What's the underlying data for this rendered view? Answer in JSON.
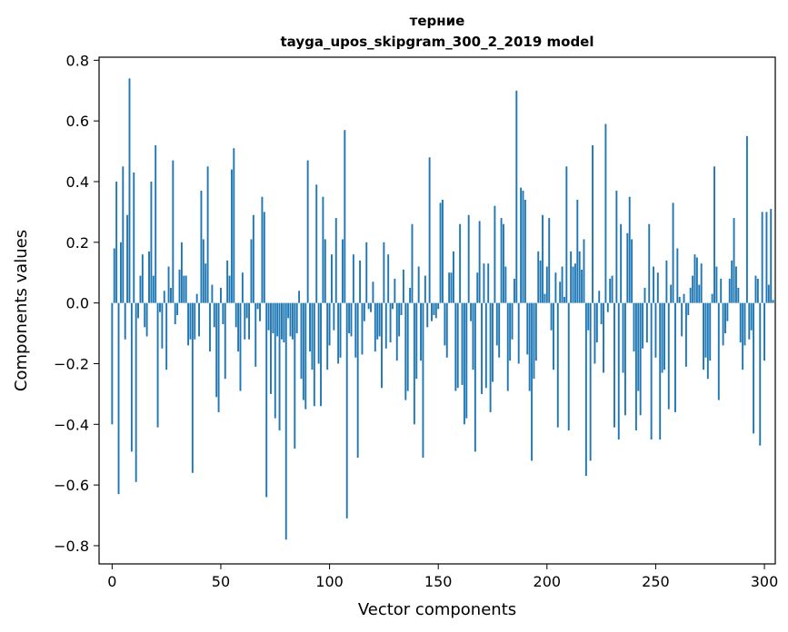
{
  "chart_data": {
    "type": "bar",
    "title": "терние",
    "subtitle": "tayga_upos_skipgram_300_2_2019 model",
    "xlabel": "Vector components",
    "ylabel": "Components values",
    "xlim": [
      -6,
      305
    ],
    "ylim": [
      -0.86,
      0.81
    ],
    "xticks": [
      0,
      50,
      100,
      150,
      200,
      250,
      300
    ],
    "xtick_labels": [
      "0",
      "50",
      "100",
      "150",
      "200",
      "250",
      "300"
    ],
    "yticks": [
      -0.8,
      -0.6,
      -0.4,
      -0.2,
      0.0,
      0.2,
      0.4,
      0.6,
      0.8
    ],
    "ytick_labels": [
      "−0.8",
      "−0.6",
      "−0.4",
      "−0.2",
      "0.0",
      "0.2",
      "0.4",
      "0.6",
      "0.8"
    ],
    "grid": false,
    "color": "#1f77b4",
    "x_start": 0,
    "values": [
      -0.4,
      0.18,
      0.4,
      -0.63,
      0.2,
      0.45,
      -0.12,
      0.29,
      0.74,
      -0.49,
      0.43,
      -0.59,
      -0.05,
      0.09,
      0.16,
      -0.08,
      -0.11,
      0.17,
      0.4,
      0.09,
      0.52,
      -0.41,
      -0.03,
      -0.15,
      0.04,
      -0.22,
      0.12,
      0.05,
      0.47,
      -0.07,
      -0.04,
      0.11,
      0.2,
      0.09,
      0.09,
      -0.14,
      -0.12,
      -0.56,
      -0.12,
      0.03,
      -0.11,
      0.37,
      0.21,
      0.13,
      0.45,
      -0.16,
      0.06,
      -0.08,
      -0.31,
      -0.36,
      0.05,
      -0.07,
      -0.25,
      0.14,
      0.09,
      0.44,
      0.51,
      -0.08,
      -0.16,
      -0.29,
      0.1,
      -0.12,
      -0.05,
      -0.12,
      0.21,
      0.29,
      -0.21,
      -0.02,
      -0.06,
      0.35,
      0.3,
      -0.64,
      -0.09,
      -0.3,
      -0.1,
      -0.38,
      -0.11,
      -0.42,
      -0.12,
      -0.13,
      -0.78,
      -0.05,
      -0.11,
      -0.12,
      -0.48,
      -0.1,
      0.04,
      -0.25,
      -0.32,
      -0.35,
      0.47,
      -0.16,
      -0.22,
      -0.34,
      0.39,
      -0.2,
      -0.34,
      0.35,
      0.21,
      -0.22,
      -0.14,
      0.16,
      -0.09,
      0.28,
      -0.2,
      -0.18,
      0.21,
      0.57,
      -0.71,
      -0.1,
      -0.11,
      0.16,
      -0.18,
      -0.51,
      0.14,
      -0.17,
      -0.06,
      0.2,
      -0.02,
      -0.03,
      0.07,
      -0.16,
      -0.12,
      -0.11,
      -0.28,
      0.2,
      -0.15,
      0.16,
      -0.13,
      -0.02,
      0.08,
      -0.19,
      -0.11,
      -0.04,
      0.11,
      -0.32,
      -0.29,
      0.05,
      0.26,
      -0.4,
      -0.25,
      0.12,
      -0.19,
      -0.51,
      0.09,
      -0.08,
      0.48,
      -0.06,
      -0.04,
      -0.05,
      -0.02,
      0.33,
      0.34,
      -0.14,
      -0.18,
      0.1,
      0.1,
      0.17,
      -0.29,
      -0.28,
      0.26,
      -0.27,
      -0.4,
      -0.38,
      0.29,
      -0.06,
      -0.22,
      -0.49,
      0.1,
      0.27,
      -0.3,
      0.13,
      -0.28,
      0.13,
      -0.36,
      -0.26,
      0.32,
      -0.14,
      -0.18,
      0.28,
      0.26,
      0.12,
      -0.29,
      -0.19,
      -0.12,
      0.08,
      0.7,
      -0.2,
      0.38,
      0.37,
      0.34,
      -0.17,
      -0.29,
      -0.52,
      -0.25,
      -0.19,
      0.17,
      0.14,
      0.29,
      0.03,
      0.12,
      0.28,
      -0.09,
      -0.22,
      0.1,
      -0.41,
      0.07,
      0.12,
      0.02,
      0.45,
      -0.42,
      0.17,
      0.12,
      0.13,
      0.34,
      0.17,
      0.11,
      0.21,
      -0.57,
      -0.09,
      -0.52,
      0.52,
      -0.2,
      -0.13,
      0.04,
      -0.07,
      -0.23,
      0.59,
      -0.03,
      0.08,
      0.09,
      -0.41,
      0.37,
      -0.45,
      0.26,
      -0.23,
      -0.37,
      0.23,
      0.35,
      0.21,
      -0.16,
      -0.42,
      -0.29,
      -0.37,
      -0.15,
      0.05,
      -0.13,
      0.26,
      -0.45,
      0.12,
      -0.18,
      0.1,
      -0.45,
      -0.23,
      -0.22,
      0.14,
      -0.35,
      0.06,
      0.33,
      -0.36,
      0.18,
      0.02,
      -0.11,
      0.03,
      -0.21,
      -0.04,
      0.05,
      0.09,
      0.16,
      0.15,
      0.06,
      0.13,
      -0.22,
      -0.18,
      -0.25,
      -0.19,
      0.03,
      0.45,
      0.12,
      -0.32,
      0.08,
      -0.14,
      -0.1,
      -0.06,
      0.08,
      0.14,
      0.28,
      0.12,
      0.05,
      -0.13,
      -0.22,
      -0.14,
      0.55,
      -0.12,
      -0.09,
      -0.43,
      0.09,
      0.08,
      -0.47,
      0.3,
      -0.19,
      0.3,
      0.06,
      0.31,
      0.01
    ]
  }
}
